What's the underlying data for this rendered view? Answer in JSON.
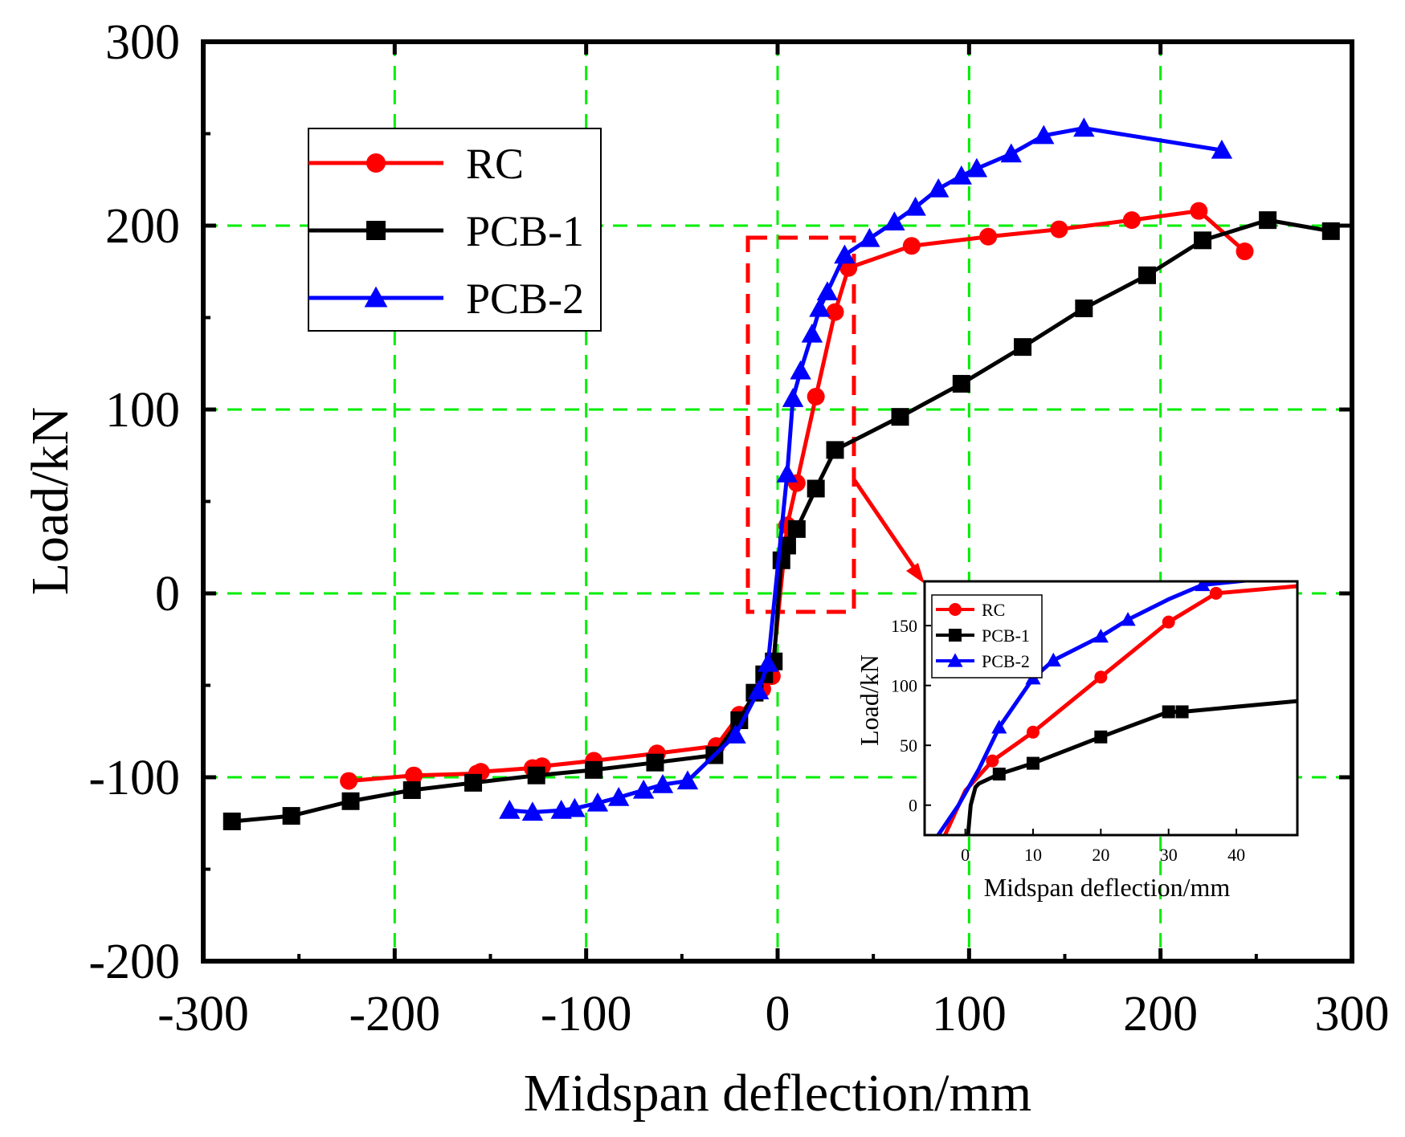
{
  "chart_data": [
    {
      "type": "line",
      "title": "",
      "xlabel": "Midspan deflection/mm",
      "ylabel": "Load/kN",
      "xlim": [
        -300,
        300
      ],
      "ylim": [
        -200,
        300
      ],
      "xticks": [
        -300,
        -200,
        -100,
        0,
        100,
        200,
        300
      ],
      "yticks": [
        -200,
        -100,
        0,
        100,
        200,
        300
      ],
      "xtick_labels": [
        "-300",
        "-200",
        "-100",
        "0",
        "100",
        "200",
        "300"
      ],
      "ytick_labels": [
        "-200",
        "-100",
        "0",
        "100",
        "200",
        "300"
      ],
      "grid": true,
      "grid_color": "#00ee00",
      "legend_position": "top-left",
      "series": [
        {
          "name": "RC",
          "color": "#ff0000",
          "marker": "circle",
          "x": [
            -224,
            -190,
            -157,
            -155,
            -128,
            -123,
            -96,
            -63,
            -32,
            -20,
            -8,
            -3,
            5,
            10,
            20,
            30,
            37,
            70,
            110,
            147,
            185,
            220,
            244
          ],
          "y": [
            -102,
            -99,
            -98,
            -97,
            -95,
            -94,
            -91,
            -87,
            -83,
            -66,
            -52,
            -45,
            37,
            60,
            107,
            153,
            177,
            189,
            194,
            198,
            203,
            208,
            186
          ]
        },
        {
          "name": "PCB-1",
          "color": "#000000",
          "marker": "square",
          "x": [
            -285,
            -254,
            -223,
            -191,
            -159,
            -126,
            -96,
            -64,
            -33,
            -20,
            -12,
            -7,
            -2,
            2,
            5,
            10,
            20,
            30,
            64,
            96,
            128,
            160,
            193,
            222,
            256,
            289
          ],
          "y": [
            -124,
            -121,
            -113,
            -107,
            -103,
            -99,
            -96,
            -92,
            -88,
            -69,
            -54,
            -44,
            -37,
            18,
            26,
            35,
            57,
            78,
            96,
            114,
            134,
            155,
            173,
            192,
            203,
            197
          ]
        },
        {
          "name": "PCB-2",
          "color": "#0000ff",
          "marker": "triangle",
          "x": [
            -140,
            -128,
            -113,
            -106,
            -94,
            -83,
            -70,
            -60,
            -47,
            -22,
            -10,
            -5,
            5,
            8,
            12,
            18,
            22,
            26,
            35,
            48,
            61,
            72,
            84,
            96,
            104,
            122,
            139,
            160,
            232
          ],
          "y": [
            -118,
            -119,
            -118,
            -117,
            -114,
            -111,
            -107,
            -104,
            -102,
            -77,
            -53,
            -38,
            65,
            106,
            121,
            141,
            155,
            164,
            184,
            193,
            202,
            210,
            220,
            227,
            231,
            239,
            249,
            253,
            241
          ]
        }
      ]
    },
    {
      "type": "line",
      "title": "",
      "xlabel": "Midspan deflection/mm",
      "ylabel": "Load/kN",
      "xlim": [
        -6,
        49
      ],
      "ylim": [
        -25,
        187
      ],
      "xticks": [
        0,
        10,
        20,
        30,
        40
      ],
      "yticks": [
        0,
        50,
        100,
        150
      ],
      "xtick_labels": [
        "0",
        "10",
        "20",
        "30",
        "40"
      ],
      "ytick_labels": [
        "0",
        "50",
        "100",
        "150"
      ],
      "grid": false,
      "legend_position": "top-left",
      "series": [
        {
          "name": "RC",
          "color": "#ff0000",
          "marker": "circle",
          "x": [
            -3,
            0,
            4,
            10,
            20,
            30,
            37,
            49
          ],
          "y": [
            -25,
            12,
            37,
            61,
            107,
            153,
            177,
            183
          ],
          "markers_at": [
            4,
            10,
            20,
            30,
            37
          ]
        },
        {
          "name": "PCB-1",
          "color": "#000000",
          "marker": "square",
          "x": [
            0.4,
            0.8,
            1.5,
            2,
            5,
            10,
            20,
            30,
            32,
            49
          ],
          "y": [
            -25,
            0,
            15,
            18,
            26,
            35,
            57,
            78,
            78,
            87
          ],
          "markers_at": [
            5,
            10,
            20,
            30,
            32
          ]
        },
        {
          "name": "PCB-2",
          "color": "#0000ff",
          "marker": "triangle",
          "x": [
            -4,
            -1,
            2,
            5,
            10,
            13,
            20,
            24,
            30,
            35,
            49
          ],
          "y": [
            -25,
            0,
            30,
            65,
            106,
            121,
            141,
            155,
            172,
            184,
            192
          ],
          "markers_at": [
            5,
            10,
            13,
            20,
            24,
            35
          ]
        }
      ]
    }
  ]
}
